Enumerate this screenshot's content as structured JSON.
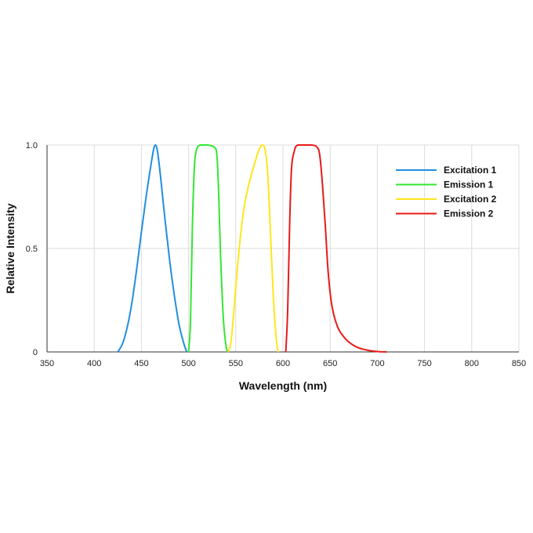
{
  "chart_data": {
    "type": "line",
    "title": "",
    "xlabel": "Wavelength (nm)",
    "ylabel": "Relative Intensity",
    "xlim": [
      350,
      850
    ],
    "ylim": [
      0,
      1.0
    ],
    "xticks": [
      350,
      400,
      450,
      500,
      550,
      600,
      650,
      700,
      750,
      800,
      850
    ],
    "yticks": [
      0,
      0.5,
      1.0
    ],
    "yticklabels": [
      "0",
      "0.5",
      "1.0"
    ],
    "grid": true,
    "legend_position": "top-right",
    "series": [
      {
        "name": "Excitation 1",
        "color": "#1f8fdf",
        "points": [
          [
            425,
            0
          ],
          [
            430,
            0.04
          ],
          [
            435,
            0.12
          ],
          [
            440,
            0.24
          ],
          [
            445,
            0.4
          ],
          [
            450,
            0.58
          ],
          [
            455,
            0.75
          ],
          [
            460,
            0.9
          ],
          [
            463,
            0.98
          ],
          [
            465,
            1.0
          ],
          [
            467,
            0.97
          ],
          [
            470,
            0.86
          ],
          [
            475,
            0.64
          ],
          [
            480,
            0.44
          ],
          [
            485,
            0.27
          ],
          [
            490,
            0.13
          ],
          [
            495,
            0.04
          ],
          [
            498,
            0
          ]
        ]
      },
      {
        "name": "Emission 1",
        "color": "#33e633",
        "points": [
          [
            500,
            0
          ],
          [
            502,
            0.15
          ],
          [
            504,
            0.6
          ],
          [
            506,
            0.88
          ],
          [
            508,
            0.97
          ],
          [
            512,
            1.0
          ],
          [
            520,
            1.0
          ],
          [
            527,
            0.99
          ],
          [
            530,
            0.95
          ],
          [
            532,
            0.75
          ],
          [
            534,
            0.45
          ],
          [
            537,
            0.15
          ],
          [
            540,
            0.02
          ],
          [
            542,
            0
          ]
        ]
      },
      {
        "name": "Excitation 2",
        "color": "#ffe619",
        "points": [
          [
            542,
            0
          ],
          [
            545,
            0.05
          ],
          [
            548,
            0.2
          ],
          [
            552,
            0.42
          ],
          [
            556,
            0.6
          ],
          [
            560,
            0.73
          ],
          [
            565,
            0.83
          ],
          [
            570,
            0.91
          ],
          [
            574,
            0.97
          ],
          [
            578,
            1.0
          ],
          [
            581,
            0.98
          ],
          [
            584,
            0.85
          ],
          [
            587,
            0.55
          ],
          [
            590,
            0.25
          ],
          [
            593,
            0.06
          ],
          [
            595,
            0
          ]
        ]
      },
      {
        "name": "Emission 2",
        "color": "#e81a1a",
        "points": [
          [
            603,
            0
          ],
          [
            605,
            0.2
          ],
          [
            607,
            0.6
          ],
          [
            609,
            0.88
          ],
          [
            612,
            0.97
          ],
          [
            616,
            1.0
          ],
          [
            630,
            1.0
          ],
          [
            636,
            0.99
          ],
          [
            639,
            0.95
          ],
          [
            642,
            0.8
          ],
          [
            645,
            0.6
          ],
          [
            648,
            0.38
          ],
          [
            652,
            0.22
          ],
          [
            658,
            0.12
          ],
          [
            665,
            0.07
          ],
          [
            672,
            0.04
          ],
          [
            680,
            0.02
          ],
          [
            690,
            0.008
          ],
          [
            700,
            0.002
          ],
          [
            710,
            0
          ]
        ]
      }
    ]
  }
}
